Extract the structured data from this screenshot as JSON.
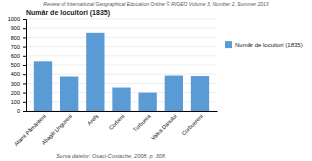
{
  "chart_data": {
    "type": "bar",
    "title": "Număr de locuitori (1835)",
    "annotations": [
      "Review of International Geographical Education Online © RIGEO Volume 3, Number 2, Summer 2013",
      "Sursa datelor: Osaci-Costache, 2008, p.  308."
    ],
    "categories": [
      "Atarni Pământeni",
      "Abagiii Ungureni",
      "Arefș",
      "Corbeni",
      "Turburea",
      "Valea Danului",
      "Corbuereni"
    ],
    "series": [
      {
        "name": "Număr de locuitori (1835)",
        "color": "#5b9bd5",
        "values": [
          540,
          375,
          850,
          255,
          200,
          385,
          380
        ]
      }
    ],
    "ylim": [
      0,
      1000
    ],
    "yticks": [
      0,
      100,
      200,
      300,
      400,
      500,
      600,
      700,
      800,
      900,
      1000
    ],
    "grid": true,
    "legend": "right"
  }
}
